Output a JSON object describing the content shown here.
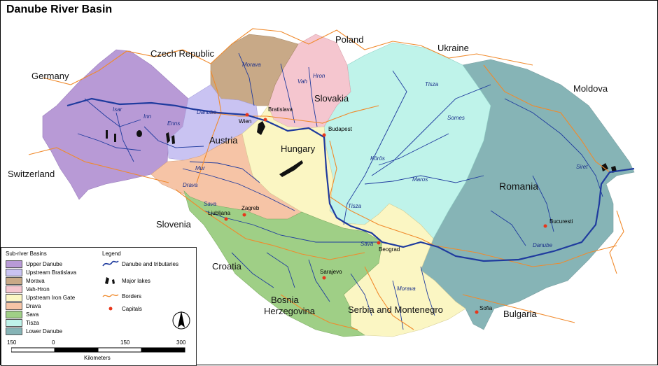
{
  "title": "Danube River Basin",
  "countries": {
    "germany": "Germany",
    "czech": "Czech Republic",
    "poland": "Poland",
    "ukraine": "Ukraine",
    "moldova": "Moldova",
    "switzerland": "Switzerland",
    "austria": "Austria",
    "slovakia": "Slovakia",
    "hungary": "Hungary",
    "romania": "Romania",
    "slovenia": "Slovenia",
    "croatia": "Croatia",
    "bosnia_1": "Bosnia",
    "bosnia_2": "Herzegovina",
    "serbia": "Serbia and Montenegro",
    "bulgaria": "Bulgaria"
  },
  "rivers": {
    "morava_n": "Morava",
    "vah": "Vah",
    "hron": "Hron",
    "tisza_n": "Tisza",
    "danube_w": "Danube",
    "isar": "Isar",
    "inn": "Inn",
    "enns": "Enns",
    "mur": "Mur",
    "drava": "Drava",
    "sava_w": "Sava",
    "somes": "Somes",
    "koros": "Körös",
    "maros": "Maros",
    "tisza_s": "Tisza",
    "siret": "Siret",
    "sava_e": "Sava",
    "morava_s": "Morava",
    "danube_e": "Danube"
  },
  "capitals": {
    "wien": "Wien",
    "bratislava": "Bratislava",
    "budapest": "Budapest",
    "ljubljana": "Ljubljana",
    "zagreb": "Zagreb",
    "beograd": "Beograd",
    "sarajevo": "Sarajevo",
    "bucuresti": "Bucuresti",
    "sofia": "Sofia"
  },
  "legend": {
    "basins_title": "Sub-river Basins",
    "basins": [
      {
        "label": "Upper Danube",
        "color": "#b89ad6"
      },
      {
        "label": "Upstream Bratislava",
        "color": "#c9c3f2"
      },
      {
        "label": "Morava",
        "color": "#c8a987"
      },
      {
        "label": "Vah-Hron",
        "color": "#f5c6cf"
      },
      {
        "label": "Upstream Iron Gate",
        "color": "#fbf6c3"
      },
      {
        "label": "Drava",
        "color": "#f6c4a6"
      },
      {
        "label": "Sava",
        "color": "#9fcf86"
      },
      {
        "label": "Tisza",
        "color": "#bff3ea"
      },
      {
        "label": "Lower Danube",
        "color": "#86b4b6"
      }
    ],
    "title": "Legend",
    "items": {
      "rivers": "Danube and tributaries",
      "lakes": "Major lakes",
      "borders": "Borders",
      "capitals": "Capitals"
    }
  },
  "scale": {
    "ticks": [
      "150",
      "0",
      "150",
      "300"
    ],
    "unit": "Kilometers"
  },
  "colors": {
    "river": "#1f3b9e",
    "border": "#f08a2c",
    "capital": "#e8361b",
    "lake": "#111111"
  }
}
